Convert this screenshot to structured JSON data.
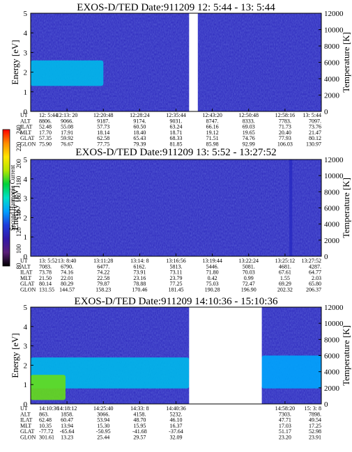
{
  "colorbar": {
    "label": "Second Harmonic Current",
    "ticks": [
      "80",
      "100",
      "120",
      "140",
      "160",
      "180",
      "200",
      "220",
      "240"
    ],
    "range": [
      80,
      240
    ],
    "colors": [
      "#000000",
      "#5a1e78",
      "#3218a8",
      "#1e3cdc",
      "#00a0ff",
      "#00e0c8",
      "#00d23c",
      "#b4e600",
      "#ffe600",
      "#ff8c00",
      "#ff0000"
    ]
  },
  "chart_data": [
    {
      "type": "heatmap",
      "title": "EXOS-D/TED   Date:911209   12: 5:44 - 13: 5:44",
      "ylabel": "Energy [eV]",
      "ylabel_right": "Temperature [K]",
      "ylim": [
        0,
        5
      ],
      "ylim_right": [
        0,
        12000
      ],
      "yticks": [
        "0",
        "1",
        "2",
        "3",
        "4",
        "5"
      ],
      "yticks_right": [
        "0",
        "2000",
        "4000",
        "6000",
        "8000",
        "10000",
        "12000"
      ],
      "data_gaps": [
        [
          0.545,
          0.575
        ]
      ],
      "features": [
        {
          "kind": "band",
          "x": [
            0.0,
            0.25
          ],
          "ylow": 1.3,
          "yhigh": 2.6,
          "level": 150
        }
      ],
      "table": {
        "rows": [
          "UT",
          "ALT",
          "ILAT",
          "MLT",
          "GLAT",
          "GLON"
        ],
        "columns": [
          [
            "12: 5:44",
            "8806.",
            "52.48",
            "17.70",
            "57.35",
            "75.90"
          ],
          [
            "12:13: 20",
            "9066.",
            "55.08",
            "17.91",
            "59.92",
            "76.67"
          ],
          [
            "12:20:48",
            "9187.",
            "57.73",
            "18.14",
            "62.58",
            "77.75"
          ],
          [
            "12:28:24",
            "9174.",
            "60.50",
            "18.40",
            "65.43",
            "79.39"
          ],
          [
            "12:35:44",
            "9031.",
            "63.24",
            "18.71",
            "68.33",
            "81.85"
          ],
          [
            "12:43:20",
            "8747.",
            "66.16",
            "19.12",
            "71.51",
            "85.98"
          ],
          [
            "12:50:48",
            "8333.",
            "69.03",
            "19.65",
            "74.76",
            "92.99"
          ],
          [
            "12:58:16",
            "7783.",
            "71.73",
            "20.40",
            "77.93",
            "106.03"
          ],
          [
            "13: 5:44",
            "7097.",
            "73.76",
            "21.47",
            "80.12",
            "130.97"
          ]
        ]
      }
    },
    {
      "type": "heatmap",
      "title": "EXOS-D/TED   Date:911209   13: 5:52 - 13:27:52",
      "ylabel": "Energy [eV]",
      "ylabel_right": "Temperature [K]",
      "ylim": [
        0,
        5
      ],
      "ylim_right": [
        0,
        12000
      ],
      "yticks": [
        "0",
        "1",
        "2",
        "3",
        "4",
        "5"
      ],
      "yticks_right": [
        "0",
        "2000",
        "4000",
        "6000",
        "8000",
        "10000",
        "12000"
      ],
      "data_gaps": [],
      "features": [
        {
          "kind": "spike",
          "x": [
            0.89,
            0.9
          ],
          "ylow": 0.0,
          "yhigh": 5.0,
          "level": 120
        }
      ],
      "table": {
        "rows": [
          "UT",
          "ALT",
          "ILAT",
          "MLT",
          "GLAT",
          "GLON"
        ],
        "columns": [
          [
            "13: 5:52",
            "7083.",
            "73.78",
            "21.50",
            "80.14",
            "131.55"
          ],
          [
            "13: 8:40",
            "6790.",
            "74.16",
            "22.01",
            "80.29",
            "144.57"
          ],
          [
            "13:11:28",
            "6477.",
            "74.22",
            "22.58",
            "79.87",
            "158.23"
          ],
          [
            "13:14: 8",
            "6162.",
            "73.91",
            "23.16",
            "78.88",
            "170.46"
          ],
          [
            "13:16:56",
            "5813.",
            "73.11",
            "23.79",
            "77.25",
            "181.45"
          ],
          [
            "13:19:44",
            "5446.",
            "71.80",
            "0.42",
            "75.03",
            "190.28"
          ],
          [
            "13:22:24",
            "5081.",
            "70.03",
            "0.99",
            "72.47",
            "196.90"
          ],
          [
            "13:25:12",
            "4681.",
            "67.61",
            "1.55",
            "69.29",
            "202.32"
          ],
          [
            "13:27:52",
            "4287.",
            "64.77",
            "2.03",
            "65.80",
            "206.37"
          ]
        ]
      }
    },
    {
      "type": "heatmap",
      "title": "EXOS-D/TED   Date:911209   14:10:36 - 15:10:36",
      "ylabel": "Energy [eV]",
      "ylabel_right": "Temperature [K]",
      "ylim": [
        0,
        5
      ],
      "ylim_right": [
        0,
        12000
      ],
      "yticks": [
        "0",
        "1",
        "2",
        "3",
        "4",
        "5"
      ],
      "yticks_right": [
        "0",
        "2000",
        "4000",
        "6000",
        "8000",
        "10000",
        "12000"
      ],
      "data_gaps": [
        [
          0.545,
          0.795
        ]
      ],
      "features": [
        {
          "kind": "band",
          "x": [
            0.0,
            0.545
          ],
          "ylow": 0.8,
          "yhigh": 2.4,
          "level": 150
        },
        {
          "kind": "band",
          "x": [
            0.0,
            0.12
          ],
          "ylow": 0.2,
          "yhigh": 1.5,
          "level": 185
        },
        {
          "kind": "band",
          "x": [
            0.795,
            1.0
          ],
          "ylow": 0.8,
          "yhigh": 2.5,
          "level": 145
        }
      ],
      "table": {
        "rows": [
          "UT",
          "ALT",
          "ILAT",
          "MLT",
          "GLAT",
          "GLON"
        ],
        "columns": [
          [
            "14:10:36",
            "863.",
            "62.48",
            "10.35",
            "-77.72",
            "301.61"
          ],
          [
            "14:18:12",
            "1858.",
            "60.47",
            "13.94",
            "-65.64",
            "13.23"
          ],
          [
            "14:25:40",
            "3066.",
            "53.94",
            "15.30",
            "-50.95",
            "25.44"
          ],
          [
            "14:33: 8",
            "4158.",
            "48.70",
            "15.95",
            "-41.68",
            "29.57"
          ],
          [
            "14:40:36",
            "5232.",
            "46.10",
            "16.37",
            "-37.64",
            "32.09"
          ],
          [
            "",
            "",
            "",
            "",
            "",
            ""
          ],
          [
            "",
            "",
            "",
            "",
            "",
            ""
          ],
          [
            "14:58:20",
            "7303.",
            "47.71",
            "17.03",
            "51.17",
            "23.20"
          ],
          [
            "15: 3: 8",
            "7898.",
            "49.54",
            "17.25",
            "52.98",
            "23.91"
          ]
        ]
      }
    }
  ]
}
